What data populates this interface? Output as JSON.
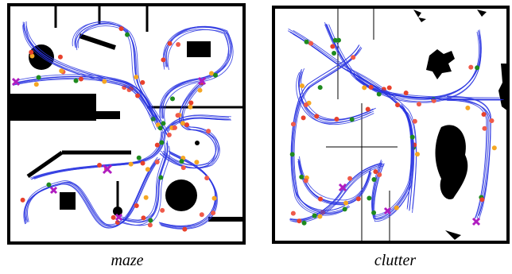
{
  "figure": {
    "panels": [
      {
        "label": "maze"
      },
      {
        "label": "clutter"
      }
    ]
  }
}
